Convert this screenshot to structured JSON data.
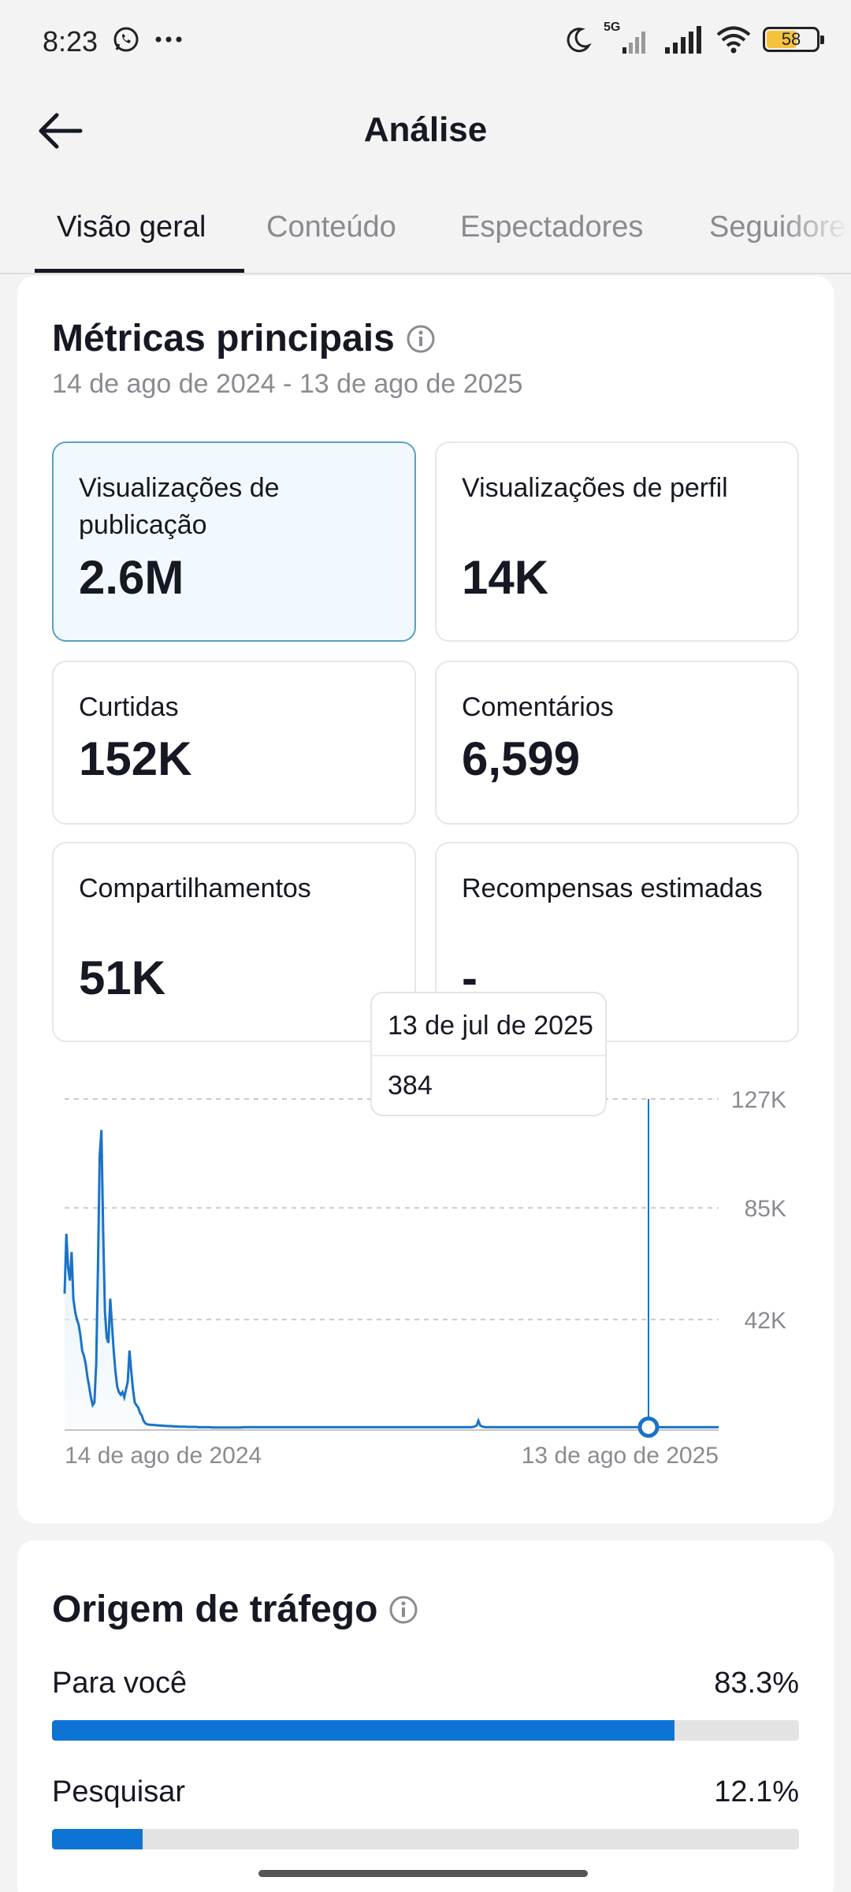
{
  "status_bar": {
    "time": "8:23",
    "network": "5G",
    "battery": "58",
    "battery_level": 0.58,
    "icons": [
      "whatsapp-icon",
      "more-dots-icon",
      "moon-icon",
      "signal-icon",
      "wifi-icon",
      "battery-icon"
    ]
  },
  "header": {
    "title": "Análise",
    "back_icon": "back-arrow-icon"
  },
  "tabs": [
    {
      "label": "Visão geral",
      "active": true
    },
    {
      "label": "Conteúdo",
      "active": false
    },
    {
      "label": "Espectadores",
      "active": false
    },
    {
      "label": "Seguidores",
      "active": false
    }
  ],
  "key_metrics": {
    "title": "Métricas principais",
    "date_range": "14 de ago de 2024 - 13 de ago de 2025",
    "items": [
      {
        "label": "Visualizações de publicação",
        "value": "2.6M",
        "selected": true
      },
      {
        "label": "Visualizações de perfil",
        "value": "14K",
        "selected": false
      },
      {
        "label": "Curtidas",
        "value": "152K",
        "selected": false
      },
      {
        "label": "Comentários",
        "value": "6,599",
        "selected": false
      },
      {
        "label": "Compartilhamentos",
        "value": "51K",
        "selected": false
      },
      {
        "label": "Recompensas estimadas",
        "value": "-",
        "selected": false
      }
    ]
  },
  "chart_data": {
    "type": "area",
    "series_color": "#1a73c8",
    "x_start_label": "14 de ago de 2024",
    "x_end_label": "13 de ago de 2025",
    "y_tick_labels": [
      "127K",
      "85K",
      "42K"
    ],
    "y_ticks": [
      127000,
      85000,
      42000
    ],
    "ylim": [
      0,
      127000
    ],
    "grid": true,
    "tooltip": {
      "date": "13 de jul de 2025",
      "value": "384"
    },
    "values": [
      52000,
      75000,
      62000,
      57000,
      68000,
      50000,
      45000,
      42000,
      40000,
      36000,
      30000,
      28000,
      25000,
      20000,
      16000,
      12000,
      9000,
      10000,
      25000,
      62000,
      105000,
      115000,
      75000,
      45000,
      35000,
      33000,
      50000,
      40000,
      30000,
      22000,
      16000,
      14000,
      13000,
      14000,
      12000,
      15000,
      18000,
      30000,
      22000,
      15000,
      10000,
      9000,
      8000,
      6000,
      5000,
      3000,
      2000,
      1600,
      1500,
      1400,
      1400,
      1300,
      1300,
      1200,
      1200,
      1100,
      1100,
      1000,
      1000,
      900,
      900,
      900,
      800,
      800,
      800,
      700,
      700,
      700,
      700,
      700,
      600,
      600,
      600,
      600,
      600,
      600,
      500,
      500,
      500,
      500,
      500,
      500,
      500,
      500,
      400,
      400,
      400,
      400,
      400,
      400,
      400,
      400,
      400,
      400,
      400,
      400,
      400,
      400,
      400,
      400,
      400,
      400,
      500,
      500,
      500,
      500,
      500,
      500,
      500,
      500,
      500,
      500,
      500,
      500,
      500,
      500,
      500,
      500,
      500,
      500,
      500,
      500,
      500,
      500,
      500,
      500,
      500,
      500,
      500,
      500,
      500,
      500,
      500,
      500,
      500,
      500,
      500,
      500,
      500,
      500,
      500,
      500,
      500,
      500,
      500,
      500,
      500,
      500,
      500,
      500,
      500,
      500,
      500,
      500,
      500,
      500,
      500,
      500,
      500,
      500,
      500,
      500,
      500,
      500,
      500,
      500,
      500,
      500,
      500,
      500,
      500,
      500,
      500,
      500,
      500,
      500,
      500,
      500,
      500,
      500,
      500,
      500,
      500,
      500,
      500,
      500,
      500,
      500,
      500,
      500,
      500,
      500,
      500,
      500,
      500,
      500,
      500,
      500,
      500,
      500,
      500,
      500,
      500,
      500,
      500,
      500,
      500,
      500,
      500,
      500,
      500,
      500,
      500,
      500,
      500,
      500,
      500,
      500,
      500,
      500,
      500,
      500,
      500,
      500,
      500,
      500,
      500,
      500,
      500,
      500,
      500,
      500,
      500,
      600,
      800,
      1200,
      3000,
      1200,
      800,
      600,
      500,
      500,
      500,
      500,
      500,
      500,
      500,
      500,
      500,
      500,
      500,
      500,
      500,
      500,
      500,
      500,
      500,
      500,
      500,
      500,
      500,
      500,
      500,
      500,
      500,
      500,
      500,
      500,
      500,
      500,
      500,
      500,
      500,
      500,
      500,
      500,
      500,
      500,
      500,
      500,
      500,
      500,
      500,
      500,
      500,
      500,
      500,
      500,
      500,
      500,
      500,
      500,
      500,
      500,
      500,
      500,
      500,
      500,
      500,
      500,
      500,
      500,
      500,
      500,
      500,
      500,
      500,
      500,
      500,
      500,
      500,
      500,
      500,
      500,
      500,
      500,
      500,
      500,
      500,
      500,
      500,
      500,
      500,
      500,
      500,
      500,
      500,
      500,
      500,
      500,
      500,
      500,
      500,
      500,
      500,
      500,
      384,
      500,
      500,
      500,
      500,
      500,
      500,
      500,
      500,
      500,
      500,
      500,
      500,
      500,
      500,
      500,
      500,
      500,
      500,
      500,
      500,
      500,
      500,
      500,
      500,
      500,
      500,
      500,
      500,
      500,
      500,
      500,
      500,
      500,
      500,
      500,
      500,
      500
    ],
    "highlight_index": 333
  },
  "traffic": {
    "title": "Origem de tráfego",
    "bar_color": "#0d74d6",
    "items": [
      {
        "label": "Para você",
        "value": "83.3%",
        "fraction": 0.833
      },
      {
        "label": "Pesquisar",
        "value": "12.1%",
        "fraction": 0.121
      }
    ]
  }
}
